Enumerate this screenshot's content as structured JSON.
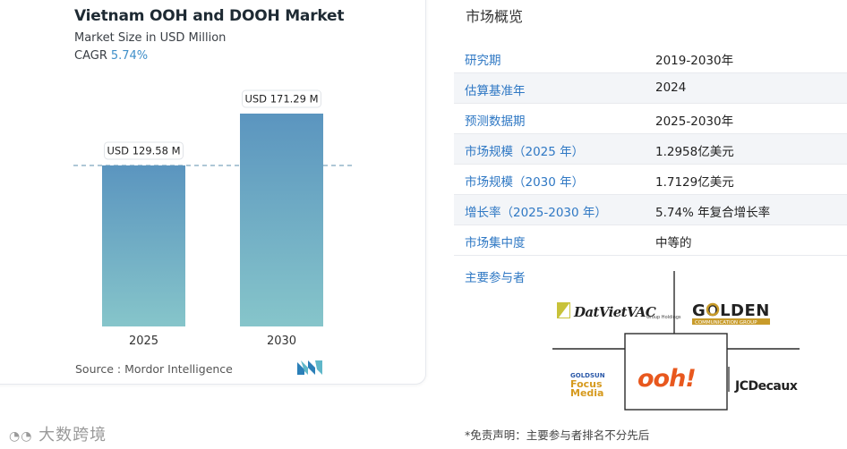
{
  "chart": {
    "title": "Vietnam OOH and DOOH Market",
    "subtitle": "Market Size in USD Million",
    "cagr_label": "CAGR",
    "cagr_value": "5.74%",
    "source": "Source :  Mordor Intelligence",
    "colors": {
      "bar_top": "#5b95bf",
      "bar_bottom": "#86c5ca",
      "dashed": "#5d8fae"
    }
  },
  "chart_data": {
    "type": "bar",
    "categories": [
      "2025",
      "2030"
    ],
    "values": [
      129.58,
      171.29
    ],
    "data_labels": [
      "USD 129.58 M",
      "USD 171.29 M"
    ],
    "title": "Vietnam OOH and DOOH Market",
    "subtitle": "Market Size in USD Million",
    "xlabel": "",
    "ylabel": "",
    "ylim": [
      0,
      171.29
    ],
    "grid": false
  },
  "overview": {
    "title": "市场概览",
    "rows": [
      {
        "label": "研究期",
        "value": "2019-2030年"
      },
      {
        "label": "估算基准年",
        "value": "2024"
      },
      {
        "label": "预测数据期",
        "value": "2025-2030年"
      },
      {
        "label": "市场规模（2025 年）",
        "value": "1.2958亿美元"
      },
      {
        "label": "市场规模（2030 年）",
        "value": "1.7129亿美元"
      },
      {
        "label": "增长率（2025-2030 年）",
        "value": "5.74% 年复合增长率"
      },
      {
        "label": "市场集中度",
        "value": "中等的"
      }
    ],
    "players_title": "主要参与者",
    "disclaimer": "*免责声明：主要参与者排名不分先后"
  },
  "players": {
    "datviet": "DatVietVAC",
    "datviet_sub": "Group Holdings",
    "golden": "GOLDEN",
    "golden_sub": "COMMUNICATION GROUP",
    "goldsun_1": "GOLDSUN",
    "goldsun_2": "Focus",
    "goldsun_3": "Media",
    "ooh": "ooh!",
    "jcdecaux": "JCDecaux"
  },
  "watermark": "大数跨境"
}
